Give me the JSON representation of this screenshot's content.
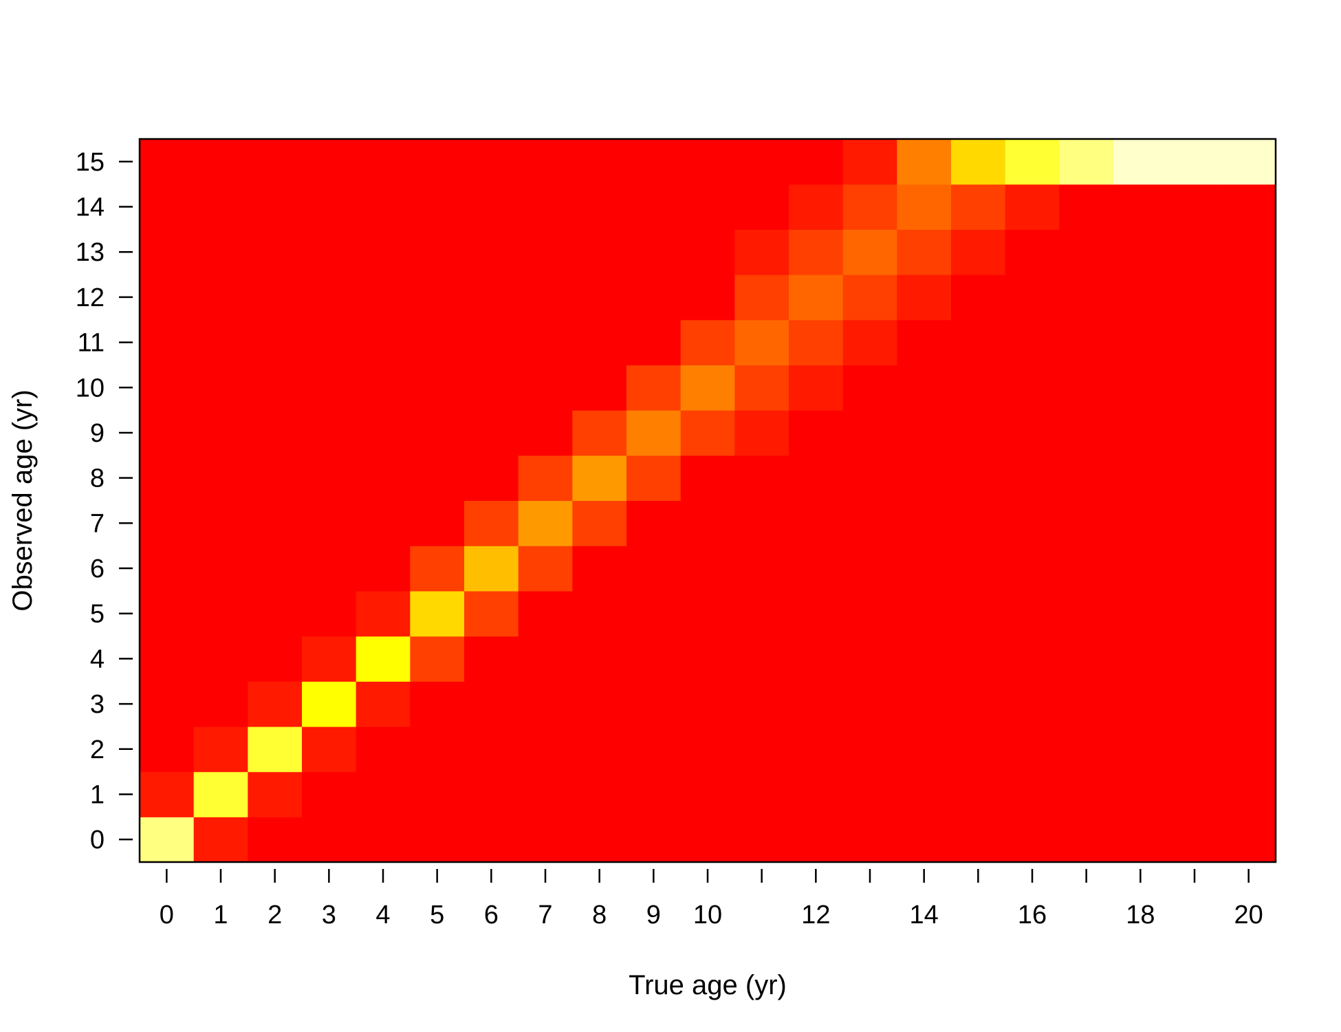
{
  "chart_data": {
    "type": "heatmap",
    "title": "",
    "xlabel": "True age (yr)",
    "ylabel": "Observed age (yr)",
    "x": [
      0,
      1,
      2,
      3,
      4,
      5,
      6,
      7,
      8,
      9,
      10,
      11,
      12,
      13,
      14,
      15,
      16,
      17,
      18,
      19,
      20
    ],
    "y": [
      0,
      1,
      2,
      3,
      4,
      5,
      6,
      7,
      8,
      9,
      10,
      11,
      12,
      13,
      14,
      15
    ],
    "xticks": [
      0,
      1,
      2,
      3,
      4,
      5,
      6,
      7,
      8,
      9,
      10,
      11,
      12,
      13,
      14,
      15,
      16,
      17,
      18,
      19,
      20
    ],
    "xtick_labels": [
      "0",
      "1",
      "2",
      "3",
      "4",
      "5",
      "6",
      "7",
      "8",
      "9",
      "10",
      "",
      "12",
      "",
      "14",
      "",
      "16",
      "",
      "18",
      "",
      "20"
    ],
    "yticks": [
      0,
      1,
      2,
      3,
      4,
      5,
      6,
      7,
      8,
      9,
      10,
      11,
      12,
      13,
      14,
      15
    ],
    "ytick_labels": [
      "0",
      "1",
      "2",
      "3",
      "4",
      "5",
      "6",
      "7",
      "8",
      "9",
      "10",
      "11",
      "12",
      "13",
      "14",
      "15"
    ],
    "xlim": [
      -0.5,
      20.5
    ],
    "ylim": [
      -0.5,
      15.5
    ],
    "grid": false,
    "legend": "none",
    "colormap": "heat",
    "colors": {
      "c0": "#FF0000",
      "c1": "#FF1A00",
      "c2": "#FF4000",
      "c3": "#FF6600",
      "c4": "#FF8000",
      "c5": "#FF9900",
      "c6": "#FFBF00",
      "c7": "#FFD900",
      "c8": "#FFFF00",
      "c9": "#FFFF33",
      "c10": "#FFFF80",
      "c11": "#FFFFCC"
    },
    "levels_note": "",
    "values": [
      [
        10,
        1,
        0,
        0,
        0,
        0,
        0,
        0,
        0,
        0,
        0,
        0,
        0,
        0,
        0,
        0,
        0,
        0,
        0,
        0,
        0
      ],
      [
        1,
        9,
        1,
        0,
        0,
        0,
        0,
        0,
        0,
        0,
        0,
        0,
        0,
        0,
        0,
        0,
        0,
        0,
        0,
        0,
        0
      ],
      [
        0,
        1,
        9,
        1,
        0,
        0,
        0,
        0,
        0,
        0,
        0,
        0,
        0,
        0,
        0,
        0,
        0,
        0,
        0,
        0,
        0
      ],
      [
        0,
        0,
        1,
        8,
        1,
        0,
        0,
        0,
        0,
        0,
        0,
        0,
        0,
        0,
        0,
        0,
        0,
        0,
        0,
        0,
        0
      ],
      [
        0,
        0,
        0,
        1,
        8,
        2,
        0,
        0,
        0,
        0,
        0,
        0,
        0,
        0,
        0,
        0,
        0,
        0,
        0,
        0,
        0
      ],
      [
        0,
        0,
        0,
        0,
        1,
        7,
        2,
        0,
        0,
        0,
        0,
        0,
        0,
        0,
        0,
        0,
        0,
        0,
        0,
        0,
        0
      ],
      [
        0,
        0,
        0,
        0,
        0,
        2,
        6,
        2,
        0,
        0,
        0,
        0,
        0,
        0,
        0,
        0,
        0,
        0,
        0,
        0,
        0
      ],
      [
        0,
        0,
        0,
        0,
        0,
        0,
        2,
        5,
        2,
        0,
        0,
        0,
        0,
        0,
        0,
        0,
        0,
        0,
        0,
        0,
        0
      ],
      [
        0,
        0,
        0,
        0,
        0,
        0,
        0,
        2,
        5,
        2,
        0,
        0,
        0,
        0,
        0,
        0,
        0,
        0,
        0,
        0,
        0
      ],
      [
        0,
        0,
        0,
        0,
        0,
        0,
        0,
        0,
        2,
        4,
        2,
        1,
        0,
        0,
        0,
        0,
        0,
        0,
        0,
        0,
        0
      ],
      [
        0,
        0,
        0,
        0,
        0,
        0,
        0,
        0,
        0,
        2,
        4,
        2,
        1,
        0,
        0,
        0,
        0,
        0,
        0,
        0,
        0
      ],
      [
        0,
        0,
        0,
        0,
        0,
        0,
        0,
        0,
        0,
        0,
        2,
        3,
        2,
        1,
        0,
        0,
        0,
        0,
        0,
        0,
        0
      ],
      [
        0,
        0,
        0,
        0,
        0,
        0,
        0,
        0,
        0,
        0,
        0,
        2,
        3,
        2,
        1,
        0,
        0,
        0,
        0,
        0,
        0
      ],
      [
        0,
        0,
        0,
        0,
        0,
        0,
        0,
        0,
        0,
        0,
        0,
        1,
        2,
        3,
        2,
        1,
        0,
        0,
        0,
        0,
        0
      ],
      [
        0,
        0,
        0,
        0,
        0,
        0,
        0,
        0,
        0,
        0,
        0,
        0,
        1,
        2,
        3,
        2,
        1,
        0,
        0,
        0,
        0
      ],
      [
        0,
        0,
        0,
        0,
        0,
        0,
        0,
        0,
        0,
        0,
        0,
        0,
        0,
        1,
        4,
        7,
        9,
        10,
        11,
        11,
        11
      ]
    ]
  }
}
